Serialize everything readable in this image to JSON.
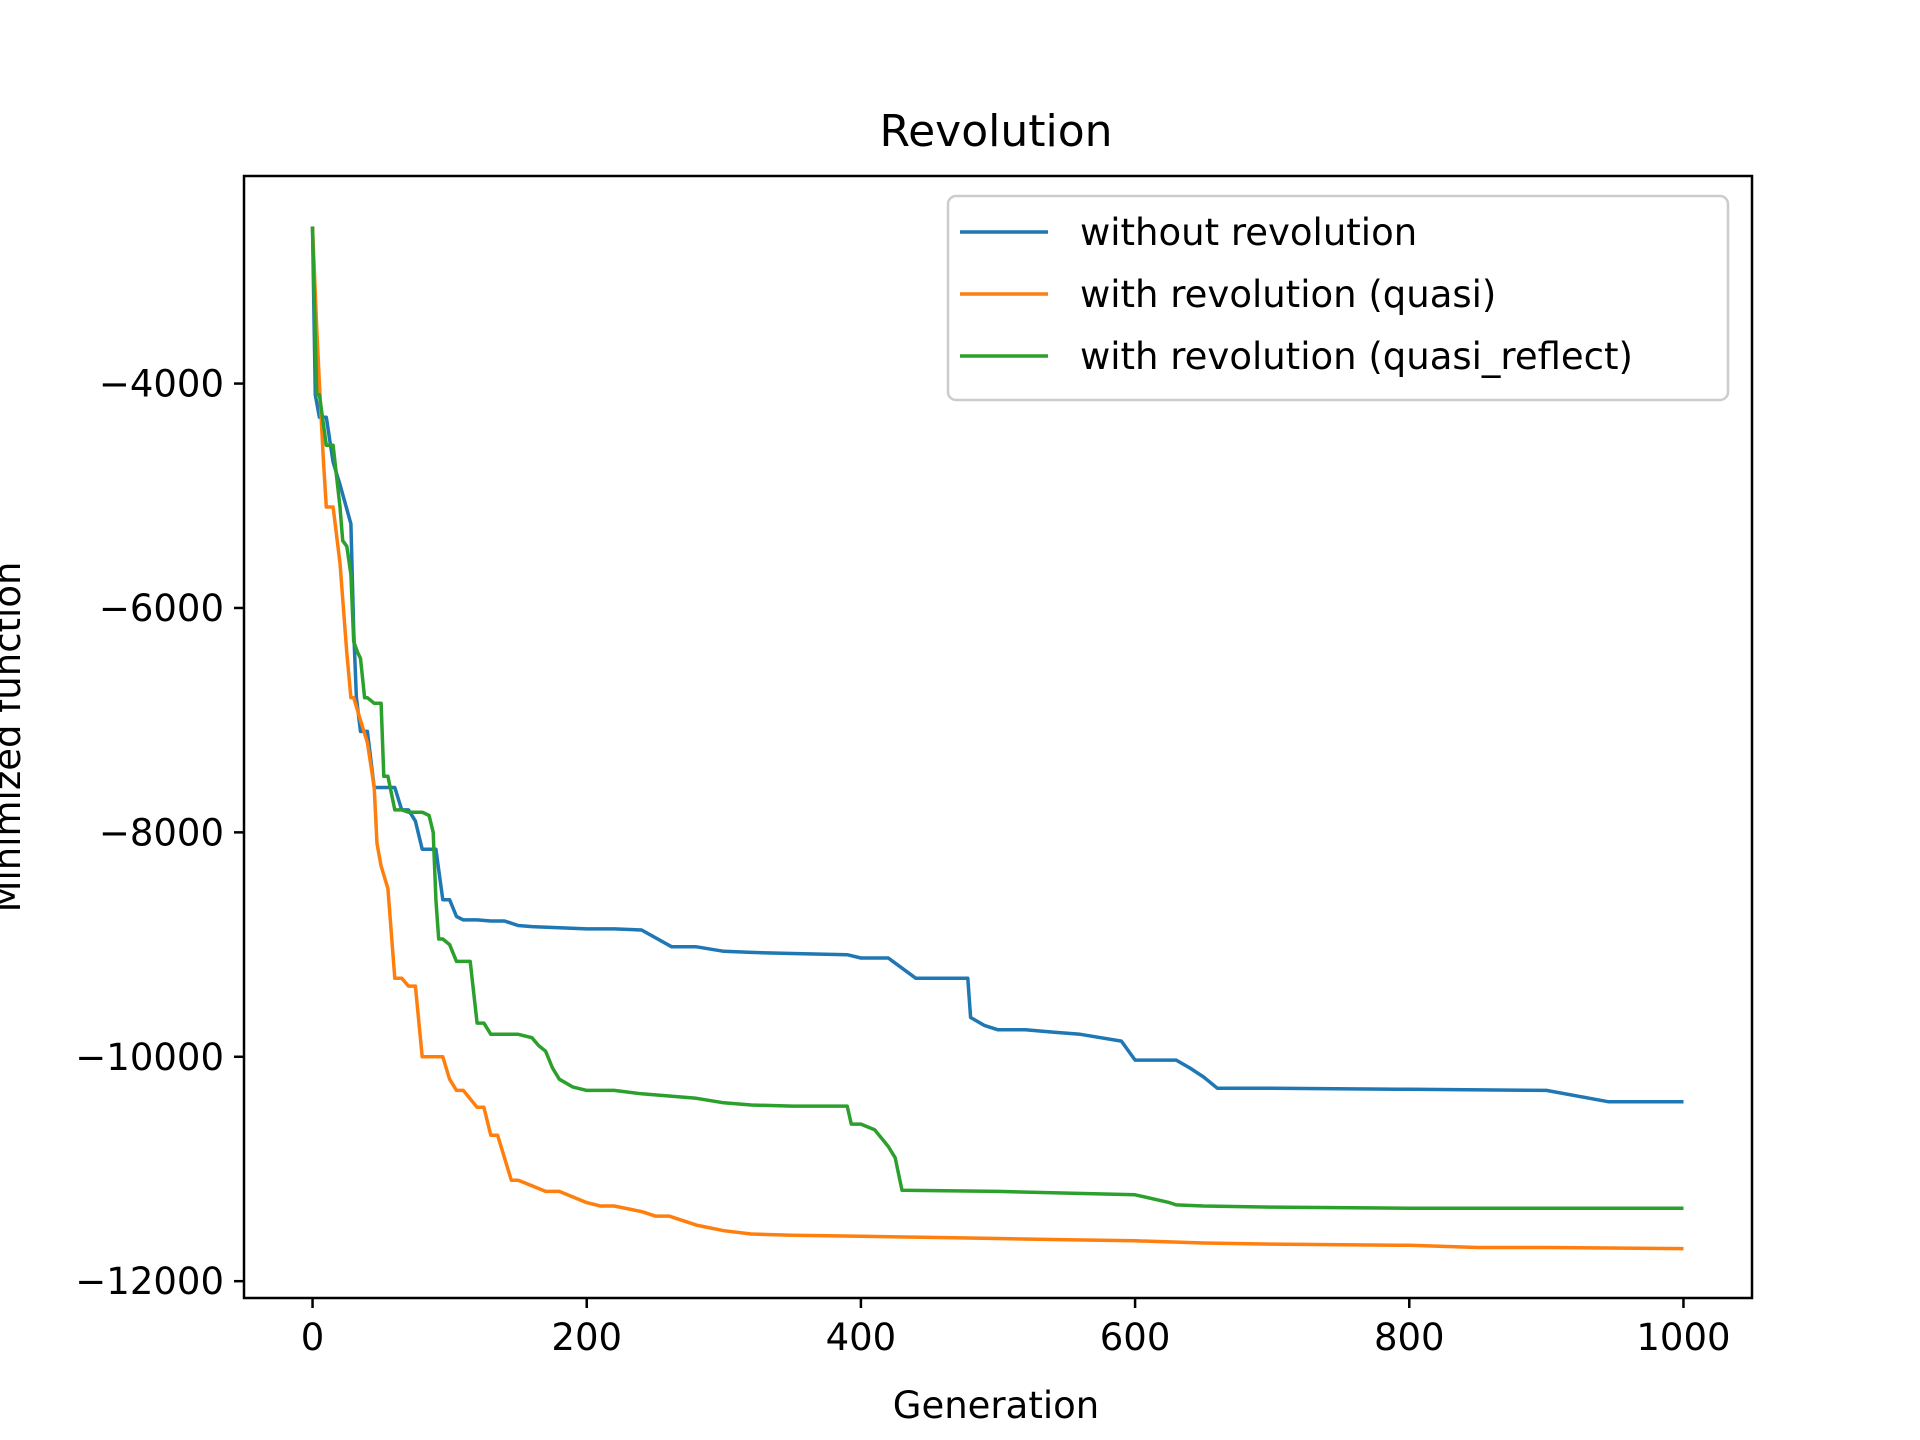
{
  "chart_data": {
    "type": "line",
    "title": "Revolution",
    "xlabel": "Generation",
    "ylabel": "Minimized function",
    "xlim": [
      -50,
      1050
    ],
    "ylim": [
      -12150,
      -2150
    ],
    "xticks": [
      0,
      200,
      400,
      600,
      800,
      1000
    ],
    "xtick_labels": [
      "0",
      "200",
      "400",
      "600",
      "800",
      "1000"
    ],
    "yticks": [
      -4000,
      -6000,
      -8000,
      -10000,
      -12000
    ],
    "ytick_labels": [
      "−4000",
      "−6000",
      "−8000",
      "−10000",
      "−12000"
    ],
    "grid": false,
    "legend": "top-right",
    "series": [
      {
        "name": "without revolution",
        "color": "#1f77b4",
        "x": [
          0,
          2,
          5,
          10,
          15,
          20,
          28,
          30,
          32,
          35,
          37,
          40,
          45,
          50,
          55,
          60,
          65,
          70,
          75,
          80,
          85,
          90,
          95,
          100,
          105,
          110,
          120,
          130,
          140,
          150,
          160,
          180,
          200,
          220,
          240,
          262,
          265,
          280,
          300,
          320,
          350,
          390,
          400,
          420,
          440,
          460,
          478,
          480,
          490,
          500,
          520,
          540,
          560,
          590,
          600,
          610,
          630,
          640,
          650,
          660,
          700,
          800,
          900,
          945,
          1000
        ],
        "y": [
          -2600,
          -4100,
          -4300,
          -4300,
          -4700,
          -4900,
          -5250,
          -6200,
          -6800,
          -7100,
          -7100,
          -7100,
          -7600,
          -7600,
          -7600,
          -7600,
          -7800,
          -7800,
          -7900,
          -8150,
          -8150,
          -8150,
          -8600,
          -8600,
          -8750,
          -8780,
          -8780,
          -8790,
          -8790,
          -8830,
          -8840,
          -8850,
          -8860,
          -8860,
          -8870,
          -9020,
          -9020,
          -9020,
          -9060,
          -9070,
          -9080,
          -9090,
          -9120,
          -9120,
          -9300,
          -9300,
          -9300,
          -9650,
          -9720,
          -9760,
          -9760,
          -9780,
          -9800,
          -9860,
          -10030,
          -10030,
          -10030,
          -10100,
          -10180,
          -10280,
          -10280,
          -10290,
          -10300,
          -10400,
          -10400
        ]
      },
      {
        "name": "with revolution (quasi)",
        "color": "#ff7f0e",
        "x": [
          0,
          3,
          5,
          8,
          10,
          15,
          20,
          25,
          28,
          30,
          35,
          40,
          45,
          47,
          50,
          55,
          60,
          65,
          70,
          75,
          80,
          85,
          90,
          95,
          100,
          105,
          110,
          120,
          125,
          130,
          135,
          140,
          145,
          150,
          160,
          170,
          180,
          190,
          200,
          210,
          220,
          240,
          250,
          260,
          280,
          300,
          320,
          350,
          400,
          450,
          500,
          550,
          600,
          650,
          700,
          800,
          850,
          900,
          1000
        ],
        "y": [
          -2600,
          -3500,
          -4000,
          -4700,
          -5100,
          -5100,
          -5600,
          -6400,
          -6800,
          -6800,
          -7000,
          -7200,
          -7600,
          -8100,
          -8300,
          -8500,
          -9300,
          -9300,
          -9370,
          -9370,
          -10000,
          -10000,
          -10000,
          -10000,
          -10200,
          -10300,
          -10300,
          -10450,
          -10450,
          -10700,
          -10700,
          -10900,
          -11100,
          -11100,
          -11150,
          -11200,
          -11200,
          -11250,
          -11300,
          -11330,
          -11330,
          -11380,
          -11420,
          -11420,
          -11500,
          -11550,
          -11580,
          -11590,
          -11600,
          -11610,
          -11620,
          -11630,
          -11640,
          -11660,
          -11670,
          -11680,
          -11700,
          -11700,
          -11710
        ]
      },
      {
        "name": "with revolution (quasi_reflect)",
        "color": "#2ca02c",
        "x": [
          0,
          3,
          5,
          10,
          15,
          20,
          22,
          25,
          28,
          30,
          33,
          35,
          38,
          40,
          45,
          50,
          52,
          55,
          60,
          65,
          70,
          75,
          80,
          85,
          88,
          90,
          92,
          95,
          100,
          105,
          110,
          115,
          120,
          125,
          130,
          140,
          150,
          160,
          165,
          170,
          175,
          180,
          190,
          200,
          220,
          240,
          260,
          280,
          300,
          320,
          350,
          390,
          393,
          400,
          410,
          420,
          425,
          430,
          500,
          600,
          625,
          630,
          650,
          700,
          800,
          1000
        ],
        "y": [
          -2600,
          -4100,
          -4100,
          -4550,
          -4550,
          -5100,
          -5400,
          -5450,
          -5700,
          -6300,
          -6400,
          -6450,
          -6800,
          -6800,
          -6850,
          -6850,
          -7500,
          -7500,
          -7800,
          -7800,
          -7820,
          -7820,
          -7820,
          -7850,
          -8000,
          -8600,
          -8950,
          -8950,
          -9000,
          -9150,
          -9150,
          -9150,
          -9700,
          -9700,
          -9800,
          -9800,
          -9800,
          -9830,
          -9900,
          -9950,
          -10100,
          -10200,
          -10270,
          -10300,
          -10300,
          -10330,
          -10350,
          -10370,
          -10410,
          -10430,
          -10440,
          -10440,
          -10600,
          -10600,
          -10650,
          -10800,
          -10900,
          -11190,
          -11200,
          -11230,
          -11300,
          -11320,
          -11330,
          -11340,
          -11350,
          -11350
        ]
      }
    ]
  }
}
